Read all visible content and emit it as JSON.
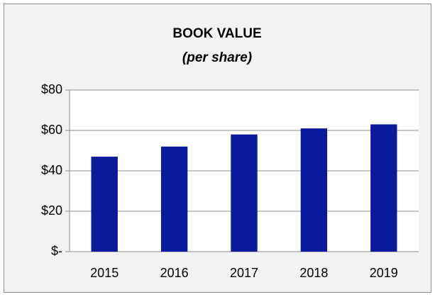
{
  "chart_data": {
    "type": "bar",
    "title": "BOOK VALUE",
    "subtitle": "(per share)",
    "categories": [
      "2015",
      "2016",
      "2017",
      "2018",
      "2019"
    ],
    "values": [
      47,
      52,
      58,
      61,
      63
    ],
    "color": "#0a1a9c",
    "ylim": [
      0,
      80
    ],
    "yticks": [
      {
        "value": 0,
        "label": "$-"
      },
      {
        "value": 20,
        "label": "$20"
      },
      {
        "value": 40,
        "label": "$40"
      },
      {
        "value": 60,
        "label": "$60"
      },
      {
        "value": 80,
        "label": "$80"
      }
    ],
    "grid": true
  }
}
